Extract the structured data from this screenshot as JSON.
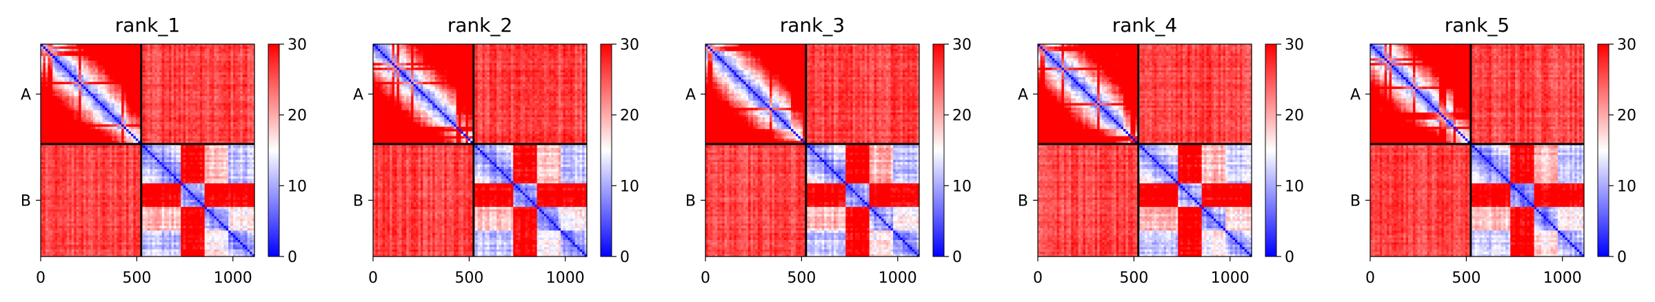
{
  "chart_data": [
    {
      "type": "heatmap",
      "title": "rank_1",
      "seed": 11,
      "chains": [
        "A",
        "B"
      ],
      "xticks": [
        0,
        500,
        1000
      ],
      "xlim": [
        0,
        1112
      ],
      "boundary": 523,
      "colorbar": {
        "ticks": [
          0,
          10,
          20,
          30
        ],
        "range": [
          0,
          30
        ],
        "colormap": "bwr"
      }
    },
    {
      "type": "heatmap",
      "title": "rank_2",
      "seed": 23,
      "chains": [
        "A",
        "B"
      ],
      "xticks": [
        0,
        500,
        1000
      ],
      "xlim": [
        0,
        1112
      ],
      "boundary": 523,
      "colorbar": {
        "ticks": [
          0,
          10,
          20,
          30
        ],
        "range": [
          0,
          30
        ],
        "colormap": "bwr"
      }
    },
    {
      "type": "heatmap",
      "title": "rank_3",
      "seed": 37,
      "chains": [
        "A",
        "B"
      ],
      "xticks": [
        0,
        500,
        1000
      ],
      "xlim": [
        0,
        1112
      ],
      "boundary": 523,
      "colorbar": {
        "ticks": [
          0,
          10,
          20,
          30
        ],
        "range": [
          0,
          30
        ],
        "colormap": "bwr"
      }
    },
    {
      "type": "heatmap",
      "title": "rank_4",
      "seed": 41,
      "chains": [
        "A",
        "B"
      ],
      "xticks": [
        0,
        500,
        1000
      ],
      "xlim": [
        0,
        1112
      ],
      "boundary": 523,
      "colorbar": {
        "ticks": [
          0,
          10,
          20,
          30
        ],
        "range": [
          0,
          30
        ],
        "colormap": "bwr"
      }
    },
    {
      "type": "heatmap",
      "title": "rank_5",
      "seed": 53,
      "chains": [
        "A",
        "B"
      ],
      "xticks": [
        0,
        500,
        1000
      ],
      "xlim": [
        0,
        1112
      ],
      "boundary": 523,
      "colorbar": {
        "ticks": [
          0,
          10,
          20,
          30
        ],
        "range": [
          0,
          30
        ],
        "colormap": "bwr"
      }
    }
  ]
}
